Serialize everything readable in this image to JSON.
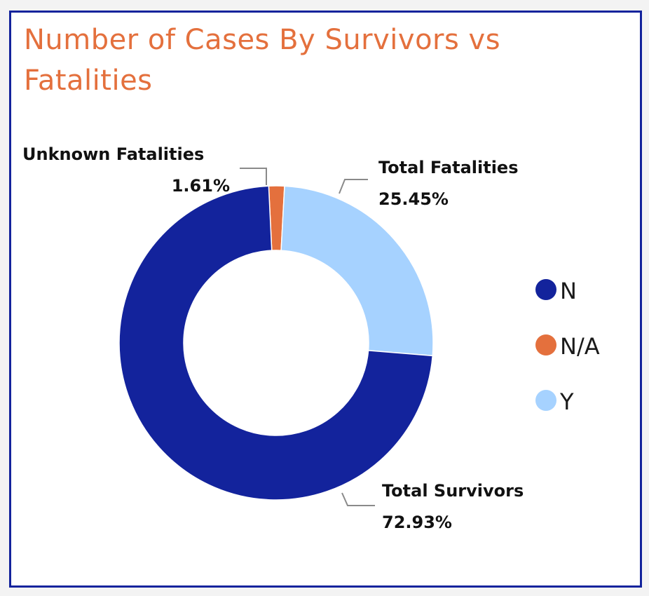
{
  "title": "Number of Cases By Survivors vs Fatalities",
  "colors": {
    "N": "#13239c",
    "N/A": "#e4703d",
    "Y": "#a6d2ff",
    "title": "#e4703d",
    "border": "#13239c"
  },
  "chart_data": {
    "type": "pie",
    "donut": true,
    "title": "Number of Cases By Survivors vs Fatalities",
    "legend_position": "right",
    "categories": [
      "N",
      "N/A",
      "Y"
    ],
    "values": [
      72.93,
      1.61,
      25.45
    ],
    "unit": "%",
    "data_labels": [
      {
        "category": "N",
        "name": "Total Survivors",
        "percent": "72.93%"
      },
      {
        "category": "N/A",
        "name": "Unknown Fatalities",
        "percent": "1.61%"
      },
      {
        "category": "Y",
        "name": "Total Fatalities",
        "percent": "25.45%"
      }
    ],
    "legend": [
      "N",
      "N/A",
      "Y"
    ]
  }
}
